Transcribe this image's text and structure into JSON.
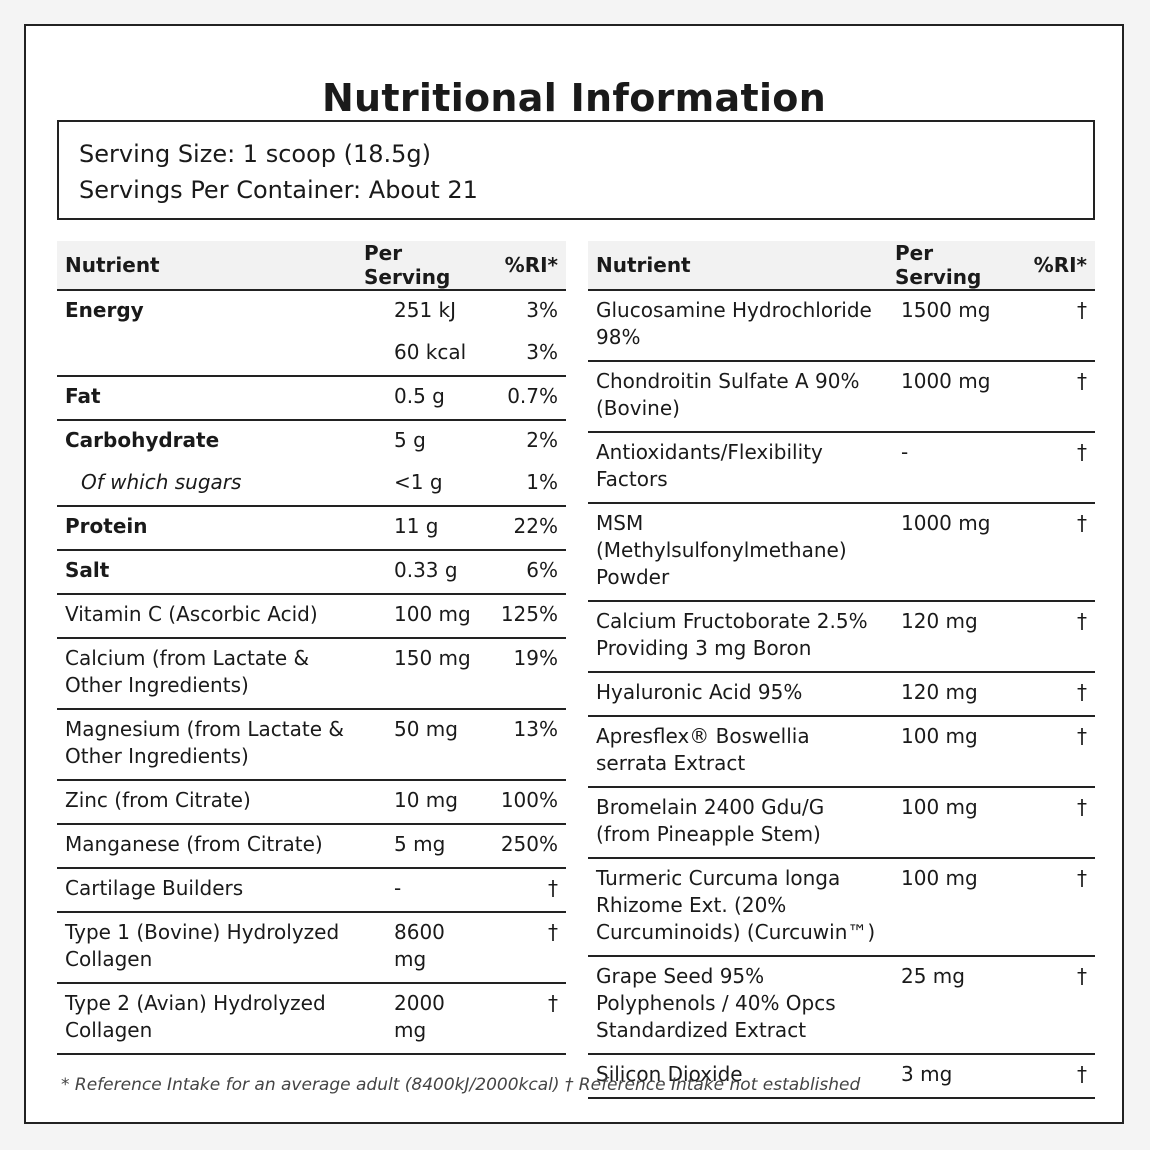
{
  "title": "Nutritional Information",
  "serving": {
    "size": "Serving Size: 1 scoop (18.5g)",
    "per_container": "Servings Per Container: About 21"
  },
  "headers": {
    "nutrient": "Nutrient",
    "per_serving": "Per Serving",
    "ri": "%RI*"
  },
  "left_rows": [
    {
      "name": "Energy",
      "amount": "251 kJ",
      "ri": "3%"
    },
    {
      "name": "",
      "amount": "60 kcal",
      "ri": "3%"
    },
    {
      "name": "Fat",
      "amount": "0.5 g",
      "ri": "0.7%"
    },
    {
      "name": "Carbohydrate",
      "amount": "5 g",
      "ri": "2%"
    },
    {
      "name": "Of which sugars",
      "amount": "<1 g",
      "ri": "1%"
    },
    {
      "name": "Protein",
      "amount": "11 g",
      "ri": "22%"
    },
    {
      "name": "Salt",
      "amount": "0.33 g",
      "ri": "6%"
    },
    {
      "name": "Vitamin C (Ascorbic Acid)",
      "amount": "100 mg",
      "ri": "125%"
    },
    {
      "name": "Calcium (from Lactate & Other Ingredients)",
      "amount": "150 mg",
      "ri": "19%"
    },
    {
      "name": "Magnesium (from Lactate & Other Ingredients)",
      "amount": "50 mg",
      "ri": "13%"
    },
    {
      "name": "Zinc (from Citrate)",
      "amount": "10 mg",
      "ri": "100%"
    },
    {
      "name": "Manganese (from Citrate)",
      "amount": "5 mg",
      "ri": "250%"
    },
    {
      "name": "Cartilage Builders",
      "amount": "-",
      "ri": "†"
    },
    {
      "name": "Type 1 (Bovine) Hydrolyzed Collagen",
      "amount": "8600 mg",
      "ri": "†"
    },
    {
      "name": "Type 2 (Avian) Hydrolyzed Collagen",
      "amount": "2000 mg",
      "ri": "†"
    }
  ],
  "right_rows": [
    {
      "name": "Glucosamine Hydrochloride 98%",
      "amount": "1500 mg",
      "ri": "†"
    },
    {
      "name": "Chondroitin Sulfate A 90% (Bovine)",
      "amount": "1000 mg",
      "ri": "†"
    },
    {
      "name": "Antioxidants/Flexibility Factors",
      "amount": "-",
      "ri": "†"
    },
    {
      "name": "MSM (Methylsulfonylmethane) Powder",
      "amount": "1000 mg",
      "ri": "†"
    },
    {
      "name": "Calcium Fructoborate 2.5% Providing 3 mg Boron",
      "amount": "120 mg",
      "ri": "†"
    },
    {
      "name": "Hyaluronic Acid 95%",
      "amount": "120 mg",
      "ri": "†"
    },
    {
      "name": "Apresflex® Boswellia serrata Extract",
      "amount": "100 mg",
      "ri": "†"
    },
    {
      "name": "Bromelain 2400 Gdu/G (from Pineapple Stem)",
      "amount": "100 mg",
      "ri": "†"
    },
    {
      "name": "Turmeric Curcuma longa Rhizome Ext. (20% Curcuminoids) (Curcuwin™)",
      "amount": "100 mg",
      "ri": "†"
    },
    {
      "name": "Grape Seed 95% Polyphenols / 40% Opcs Standardized Extract",
      "amount": "25 mg",
      "ri": "†"
    },
    {
      "name": "Silicon Dioxide",
      "amount": "3 mg",
      "ri": "†"
    }
  ],
  "footnote": "* Reference Intake for an average adult (8400kJ/2000kcal) † Reference Intake not established"
}
